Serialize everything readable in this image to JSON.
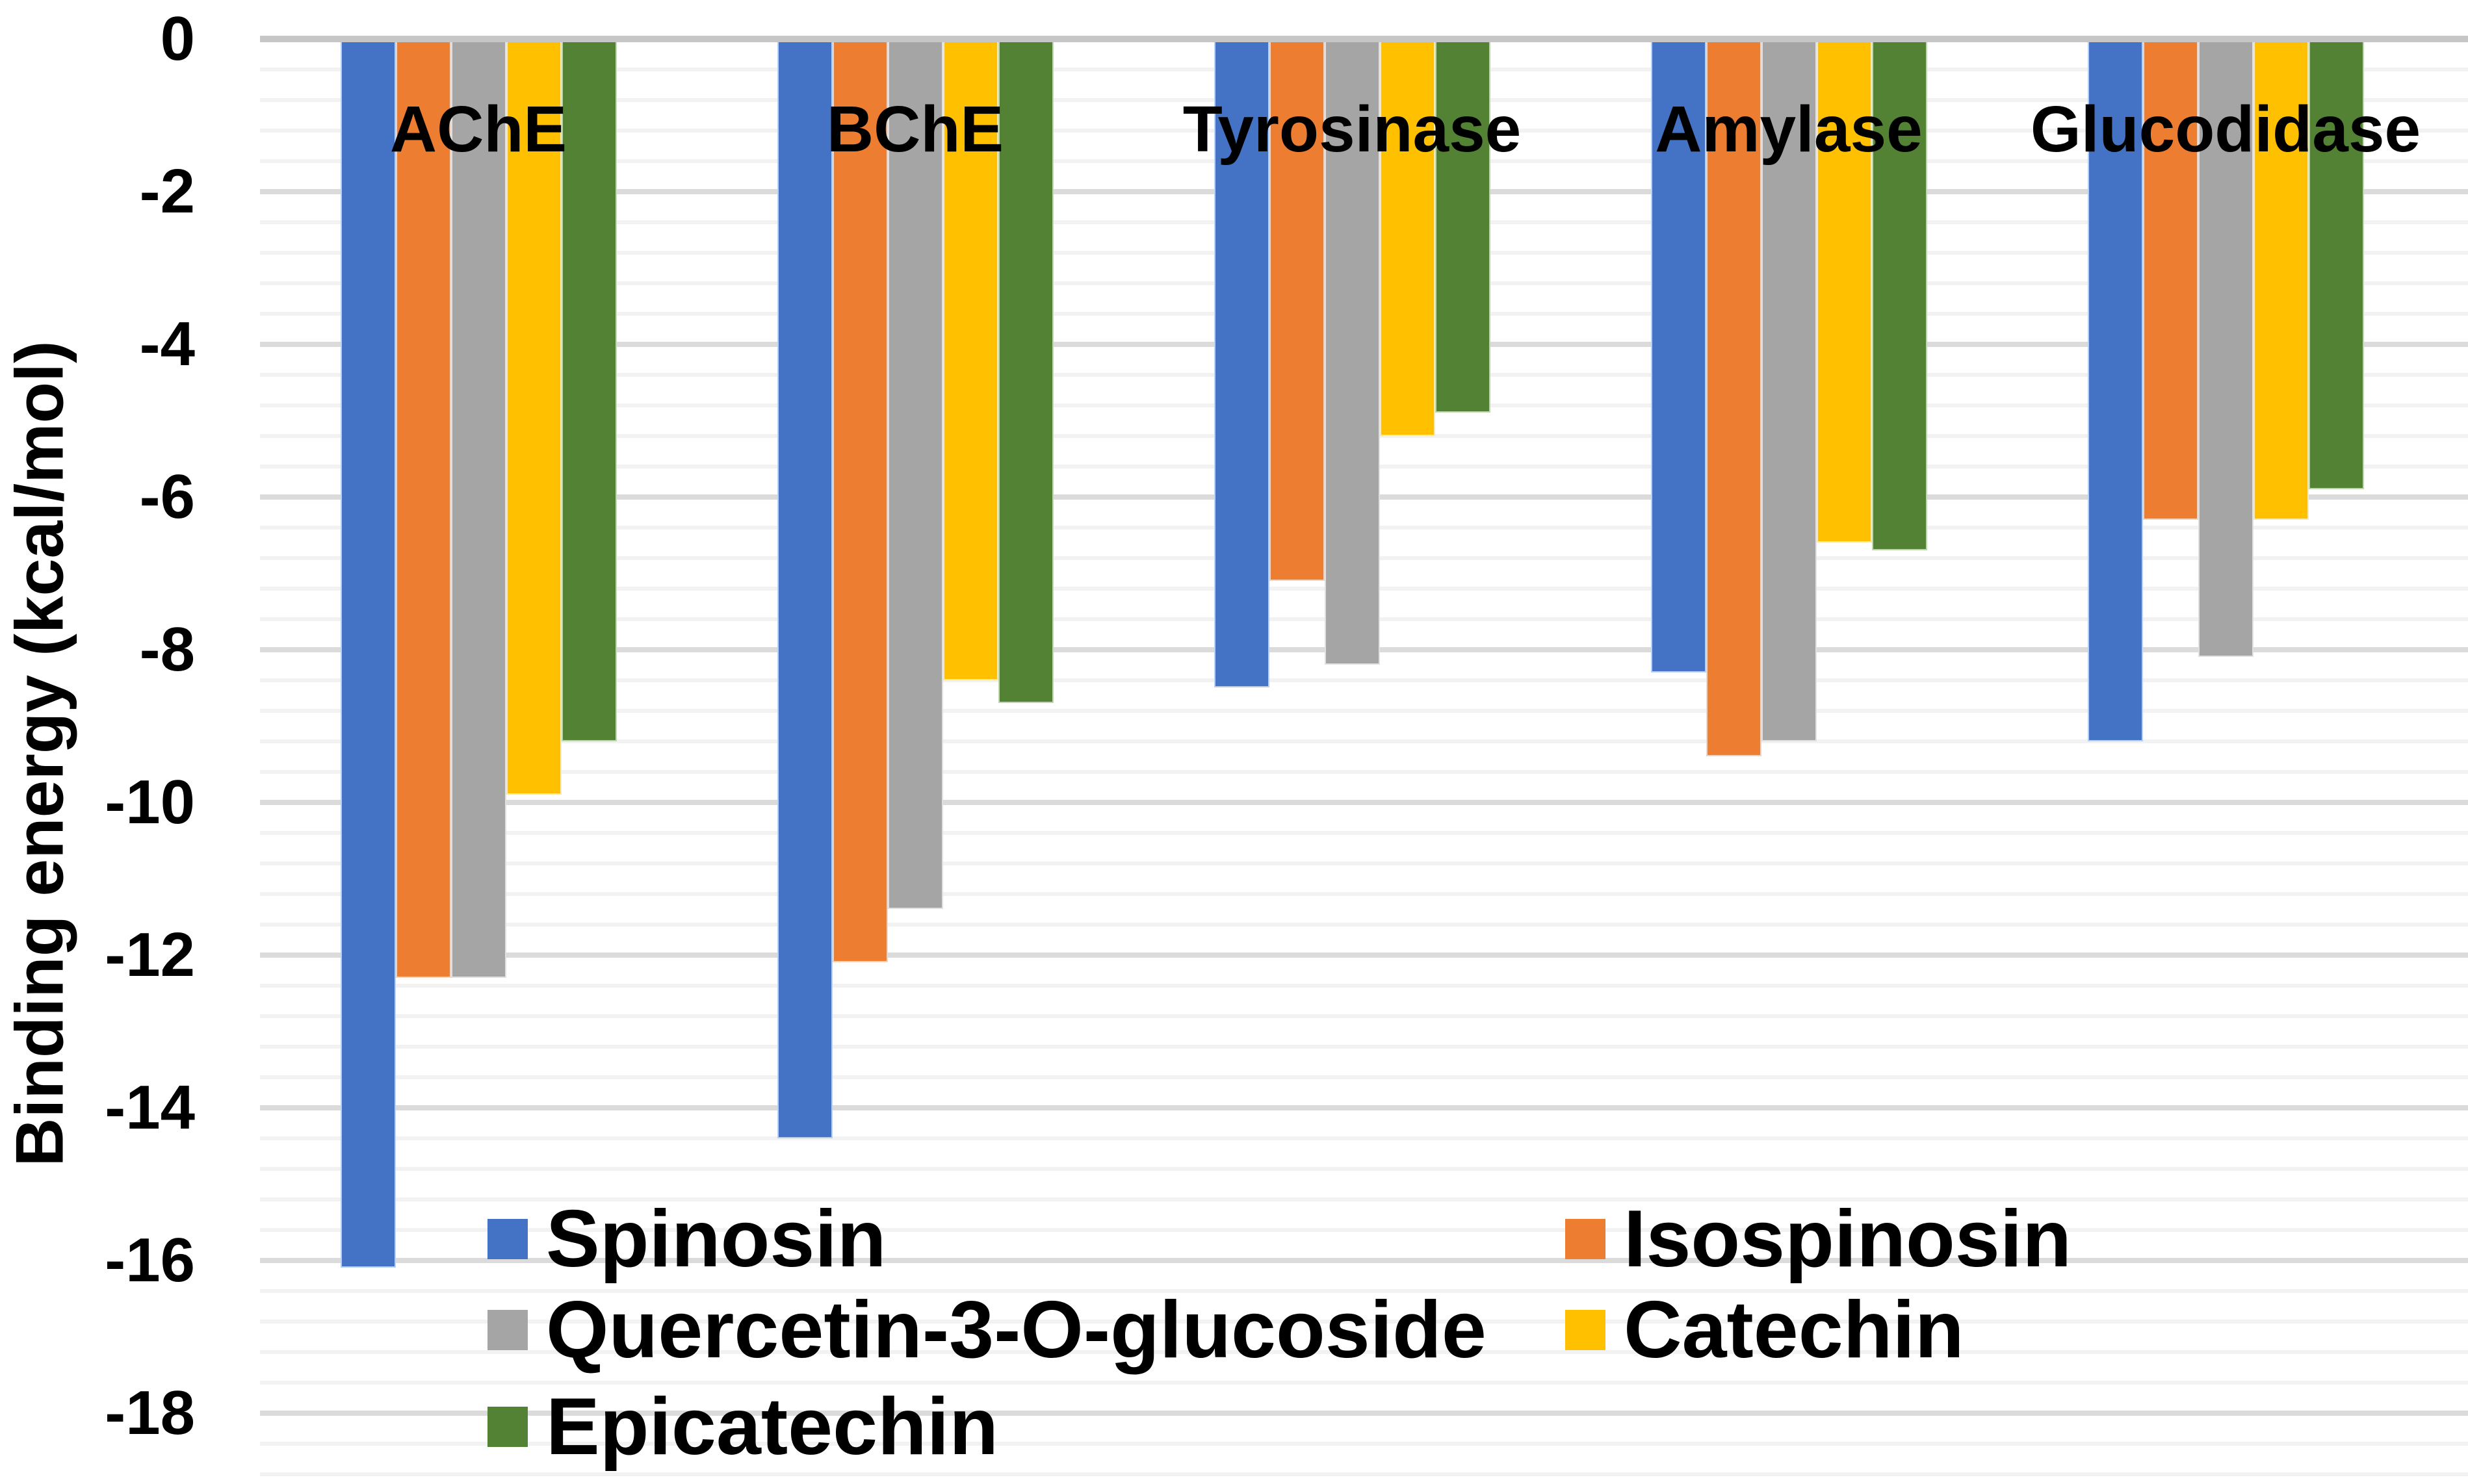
{
  "chart_data": {
    "type": "bar",
    "title": "",
    "xlabel": "",
    "ylabel": "Binding energy (kcal/mol)",
    "categories": [
      "AChE",
      "BChE",
      "Tyrosinase",
      "Amylase",
      "Glucodidase"
    ],
    "series": [
      {
        "name": "Spinosin",
        "color": "#4472C4",
        "values": [
          -16.1,
          -14.4,
          -8.5,
          -8.3,
          -9.2
        ]
      },
      {
        "name": "Isospinosin",
        "color": "#ED7D31",
        "values": [
          -12.3,
          -12.1,
          -7.1,
          -9.4,
          -6.3
        ]
      },
      {
        "name": "Quercetin-3-O-glucoside",
        "color": "#A5A5A5",
        "values": [
          -12.3,
          -11.4,
          -8.2,
          -9.2,
          -8.1
        ]
      },
      {
        "name": "Catechin",
        "color": "#FFC000",
        "values": [
          -9.9,
          -8.4,
          -5.2,
          -6.6,
          -6.3
        ]
      },
      {
        "name": "Epicatechin",
        "color": "#548235",
        "values": [
          -9.2,
          -8.7,
          -4.9,
          -6.7,
          -5.9
        ]
      }
    ],
    "y_axis": {
      "min": -18,
      "max": 0,
      "major_unit": 2,
      "minor_unit": 0.4,
      "tick_labels": [
        "0",
        "-2",
        "-4",
        "-6",
        "-8",
        "-10",
        "-12",
        "-14",
        "-16",
        "-18"
      ]
    },
    "grid": {
      "minor_color": "#f2f2f2",
      "major_color": "#dbdbdb",
      "zero_line_color": "#c6c6c6"
    },
    "legend": {
      "position": "inside-bottom-left",
      "rows": [
        [
          0,
          1
        ],
        [
          2,
          3
        ],
        [
          4
        ]
      ]
    }
  }
}
